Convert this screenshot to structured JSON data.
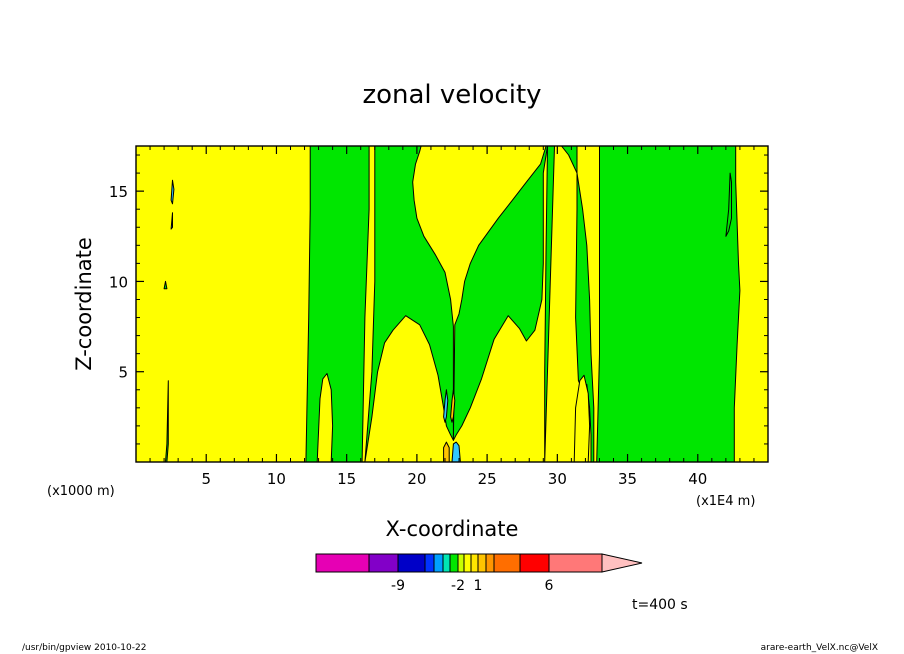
{
  "footer": {
    "left": "/usr/bin/gpview   2010-10-22",
    "right": "arare-earth_VelX.nc@VelX"
  },
  "time_label": "t=400 s",
  "chart_data": {
    "type": "heatmap",
    "title": "zonal velocity",
    "xlabel": "X-coordinate",
    "ylabel": "Z-coordinate",
    "x_unit_label": "(x1000 m)",
    "x_unit_label_right": "(x1E4 m)",
    "xlim": [
      0,
      45
    ],
    "ylim": [
      0,
      17.5
    ],
    "xticks": [
      5,
      10,
      15,
      20,
      25,
      30,
      35,
      40
    ],
    "yticks": [
      5,
      10,
      15
    ],
    "background_fill": "#ffff00",
    "regions": [
      {
        "color": "#00e600",
        "x": [
          12.1,
          12.3,
          12.4,
          12.4,
          16.6,
          16.6,
          16.3,
          16.1
        ],
        "z": [
          0,
          8,
          14,
          17.5,
          17.5,
          14,
          8,
          0
        ]
      },
      {
        "color": "#00e600",
        "x": [
          16.3,
          16.8,
          17.2,
          17.7,
          18.3,
          19.2,
          20.2,
          20.9,
          21.5,
          21.9,
          22.1,
          22.4,
          22.6,
          22.6,
          22.6,
          22.4,
          22.0,
          21.3,
          20.5,
          20.0,
          19.8,
          19.7,
          19.9,
          20.2,
          20.3,
          17.0,
          17.0,
          16.8
        ],
        "z": [
          0,
          2.5,
          5,
          6.6,
          7.3,
          8.1,
          7.6,
          6.5,
          4.8,
          3.0,
          2.0,
          1.5,
          1.2,
          4,
          7.5,
          9.0,
          10.5,
          11.5,
          12.5,
          13.5,
          14.5,
          15.5,
          16.5,
          17.2,
          17.5,
          17.5,
          10,
          5
        ]
      },
      {
        "color": "#00e600",
        "x": [
          22.6,
          22.8,
          23.2,
          23.8,
          24.6,
          25.5,
          26.5,
          27.3,
          27.8,
          28.4,
          28.9,
          29.0,
          29.0,
          29.0,
          29.3,
          29.2,
          28.8,
          27.8,
          26.8,
          25.8,
          24.4,
          23.8,
          23.4,
          23.2,
          23.0,
          22.7
        ],
        "z": [
          1.2,
          1.5,
          2.0,
          3.0,
          4.6,
          6.8,
          8.1,
          7.4,
          6.7,
          7.3,
          9.0,
          11,
          13.5,
          16,
          17.5,
          17.5,
          16.5,
          15.5,
          14.5,
          13.5,
          12.0,
          11.0,
          10.0,
          9.0,
          8.2,
          7.6
        ]
      },
      {
        "color": "#00e600",
        "x": [
          29.1,
          29.1,
          29.2,
          29.3,
          31.4,
          31.4,
          31.3,
          31.5,
          31.8,
          32.1,
          32.3,
          32.4,
          32.4,
          32.6,
          32.6,
          32.4,
          32.3,
          32.1,
          31.8,
          31.4,
          30.8,
          30.3,
          30.0,
          29.8
        ],
        "z": [
          0,
          5,
          12,
          17.5,
          17.5,
          14,
          8,
          4.5,
          4.0,
          4.3,
          3.0,
          1.5,
          0,
          0,
          3,
          6,
          9,
          12,
          14,
          16,
          17,
          17.5,
          17.5,
          17.5
        ]
      },
      {
        "color": "#00e600",
        "x": [
          32.8,
          33.0,
          33.0,
          33.0,
          42.7,
          42.7,
          42.9,
          43.0,
          42.8,
          42.6,
          42.6
        ],
        "z": [
          0,
          6,
          12,
          17.5,
          17.5,
          15.5,
          11.0,
          9.5,
          6.5,
          3.0,
          0
        ]
      },
      {
        "color": "#ffff00",
        "x": [
          12.9,
          13.1,
          13.3,
          13.6,
          13.9,
          14.0,
          13.9
        ],
        "z": [
          0,
          3.5,
          4.6,
          4.9,
          4.0,
          2.0,
          0
        ]
      },
      {
        "color": "#ffff00",
        "x": [
          31.2,
          31.3,
          31.6,
          31.9,
          32.2,
          32.3,
          32.2
        ],
        "z": [
          0,
          3.0,
          4.5,
          4.8,
          3.8,
          2.0,
          0
        ]
      },
      {
        "color": "#32c8ff",
        "x": [
          21.9,
          22.0,
          22.1,
          22.2,
          22.1,
          22.0
        ],
        "z": [
          2.5,
          3.4,
          4.0,
          3.4,
          2.5,
          2.2
        ]
      },
      {
        "color": "#ffc400",
        "x": [
          22.4,
          22.5,
          22.6,
          22.7,
          22.6,
          22.5
        ],
        "z": [
          2.5,
          3.4,
          4.0,
          3.4,
          2.5,
          2.2
        ]
      },
      {
        "color": "#ffc400",
        "x": [
          21.9,
          21.9,
          22.1,
          22.3,
          22.3
        ],
        "z": [
          0,
          0.8,
          1.1,
          0.8,
          0
        ]
      },
      {
        "color": "#32c8ff",
        "x": [
          22.5,
          22.6,
          22.8,
          23.0,
          23.1
        ],
        "z": [
          0,
          1.0,
          1.1,
          0.9,
          0
        ]
      },
      {
        "color": "#32c8ff",
        "x": [
          2.5,
          2.6,
          2.7,
          2.6
        ],
        "z": [
          14.5,
          15.6,
          15.1,
          14.3
        ]
      },
      {
        "color": "#32c8ff",
        "x": [
          2.5,
          2.6,
          2.6
        ],
        "z": [
          12.9,
          13.8,
          13.0
        ]
      },
      {
        "color": "#00e600",
        "x": [
          2.1,
          2.2,
          2.3,
          2.3,
          2.2
        ],
        "z": [
          0,
          1.0,
          4.5,
          1.0,
          0
        ]
      },
      {
        "color": "#00e600",
        "x": [
          2.0,
          2.1,
          2.2
        ],
        "z": [
          9.6,
          10.0,
          9.6
        ]
      },
      {
        "color": "#00e600",
        "x": [
          42.0,
          42.2,
          42.3,
          42.4,
          42.4,
          42.2
        ],
        "z": [
          12.5,
          14.0,
          16.0,
          15.5,
          13.5,
          12.8
        ]
      }
    ],
    "colorbar": {
      "colors": [
        "#e600b4",
        "#8200c8",
        "#0000c8",
        "#0032ff",
        "#00a0ff",
        "#00e6b4",
        "#00e600",
        "#c8ff00",
        "#ffff00",
        "#ffe600",
        "#ffc400",
        "#ff9600",
        "#ff6e00",
        "#ff0000",
        "#ff7878",
        "#ffc0c0"
      ],
      "widths": [
        53,
        29,
        27,
        9,
        9,
        7,
        8,
        6,
        7,
        7,
        8,
        8,
        26,
        29,
        53,
        40
      ],
      "tick_labels": [
        {
          "label": "-9",
          "boundary": 1
        },
        {
          "label": "-2",
          "boundary": 6
        },
        {
          "label": "1",
          "boundary": 9
        },
        {
          "label": "6",
          "boundary": 13
        }
      ]
    }
  }
}
